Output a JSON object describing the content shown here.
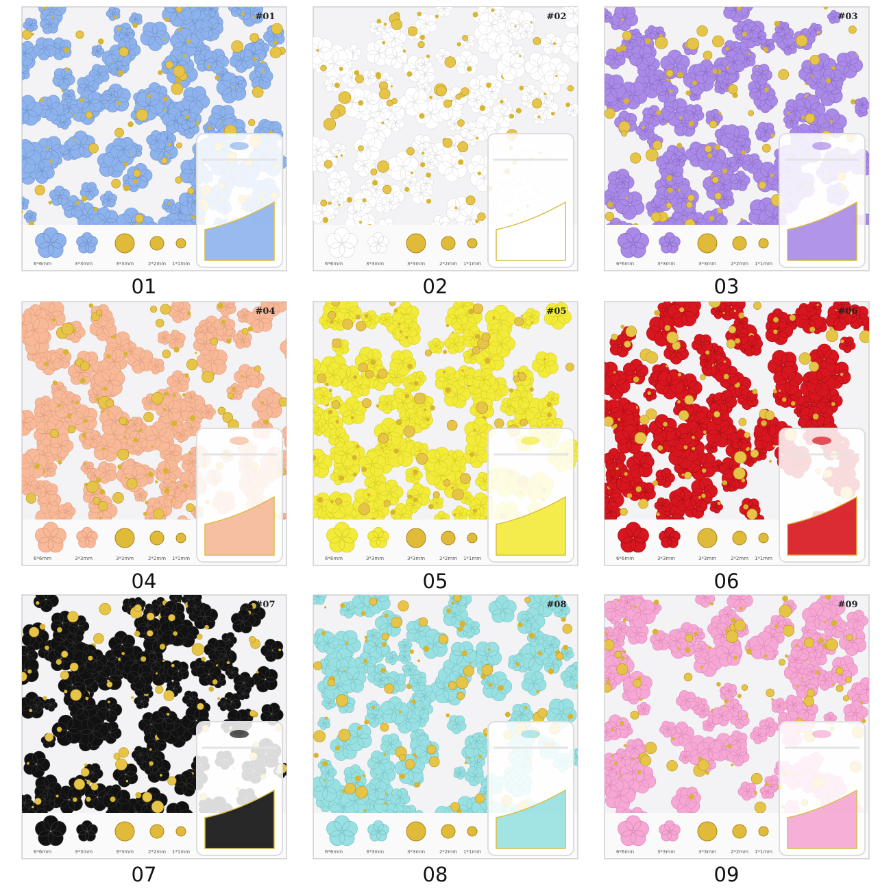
{
  "panels": [
    {
      "tag": "#01",
      "caption": "01",
      "sizes": [
        "6*6mm",
        "3*3mm",
        "3*3mm",
        "2*2mm",
        "1*1mm"
      ]
    },
    {
      "tag": "#02",
      "caption": "02",
      "sizes": [
        "6*6mm",
        "3*3mm",
        "3*3mm",
        "2*2mm",
        "1*1mm"
      ]
    },
    {
      "tag": "#03",
      "caption": "03",
      "sizes": [
        "6*6mm",
        "3*3mm",
        "3*3mm",
        "2*2mm",
        "1*1mm"
      ]
    },
    {
      "tag": "#04",
      "caption": "04",
      "sizes": [
        "6*6mm",
        "3*3mm",
        "3*3mm",
        "2*2mm",
        "1*1mm"
      ]
    },
    {
      "tag": "#05",
      "caption": "05",
      "sizes": [
        "6*6mm",
        "3*3mm",
        "3*3mm",
        "2*2mm",
        "1*1mm"
      ]
    },
    {
      "tag": "#06",
      "caption": "06",
      "sizes": [
        "6*6mm",
        "3*3mm",
        "3*3mm",
        "2*2mm",
        "1*1mm"
      ]
    },
    {
      "tag": "#07",
      "caption": "07",
      "sizes": [
        "6*6mm",
        "3*3mm",
        "3*3mm",
        "2*2mm",
        "1*1mm"
      ]
    },
    {
      "tag": "#08",
      "caption": "08",
      "sizes": [
        "6*6mm",
        "3*3mm",
        "3*3mm",
        "2*2mm",
        "1*1mm"
      ]
    },
    {
      "tag": "#09",
      "caption": "09",
      "sizes": [
        "6*6mm",
        "3*3mm",
        "3*3mm",
        "2*2mm",
        "1*1mm"
      ]
    }
  ]
}
